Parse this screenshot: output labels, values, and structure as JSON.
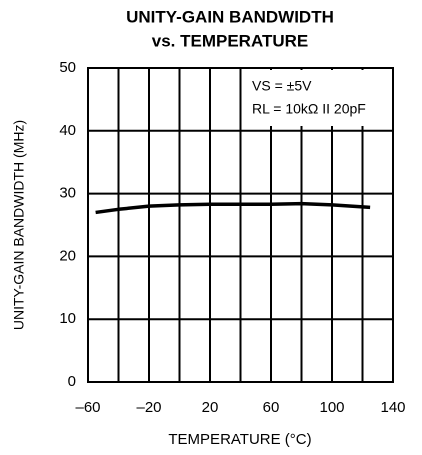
{
  "chart_data": {
    "type": "line",
    "title": [
      "UNITY-GAIN BANDWIDTH",
      "vs. TEMPERATURE"
    ],
    "xlabel": "TEMPERATURE (°C)",
    "ylabel": "UNITY-GAIN BANDWIDTH (MHz)",
    "annotations": [
      "VS = ±5V",
      "RL = 10kΩ II 20pF"
    ],
    "x": [
      -55,
      -40,
      -20,
      0,
      20,
      40,
      60,
      80,
      100,
      125
    ],
    "series": [
      {
        "name": "Unity-gain bandwidth",
        "color": "#000000",
        "values": [
          27.0,
          27.5,
          28.0,
          28.2,
          28.3,
          28.3,
          28.3,
          28.4,
          28.2,
          27.8
        ]
      }
    ],
    "xlim": [
      -60,
      140
    ],
    "xticks": [
      {
        "value": -60,
        "label": "–60"
      },
      {
        "value": -20,
        "label": "–20"
      },
      20,
      60,
      100,
      140
    ],
    "xminor_ticks": [
      -40,
      0,
      40,
      80,
      120
    ],
    "ylim": [
      0,
      50
    ],
    "yticks": [
      0,
      10,
      20,
      30,
      40,
      50
    ],
    "grid": true
  }
}
